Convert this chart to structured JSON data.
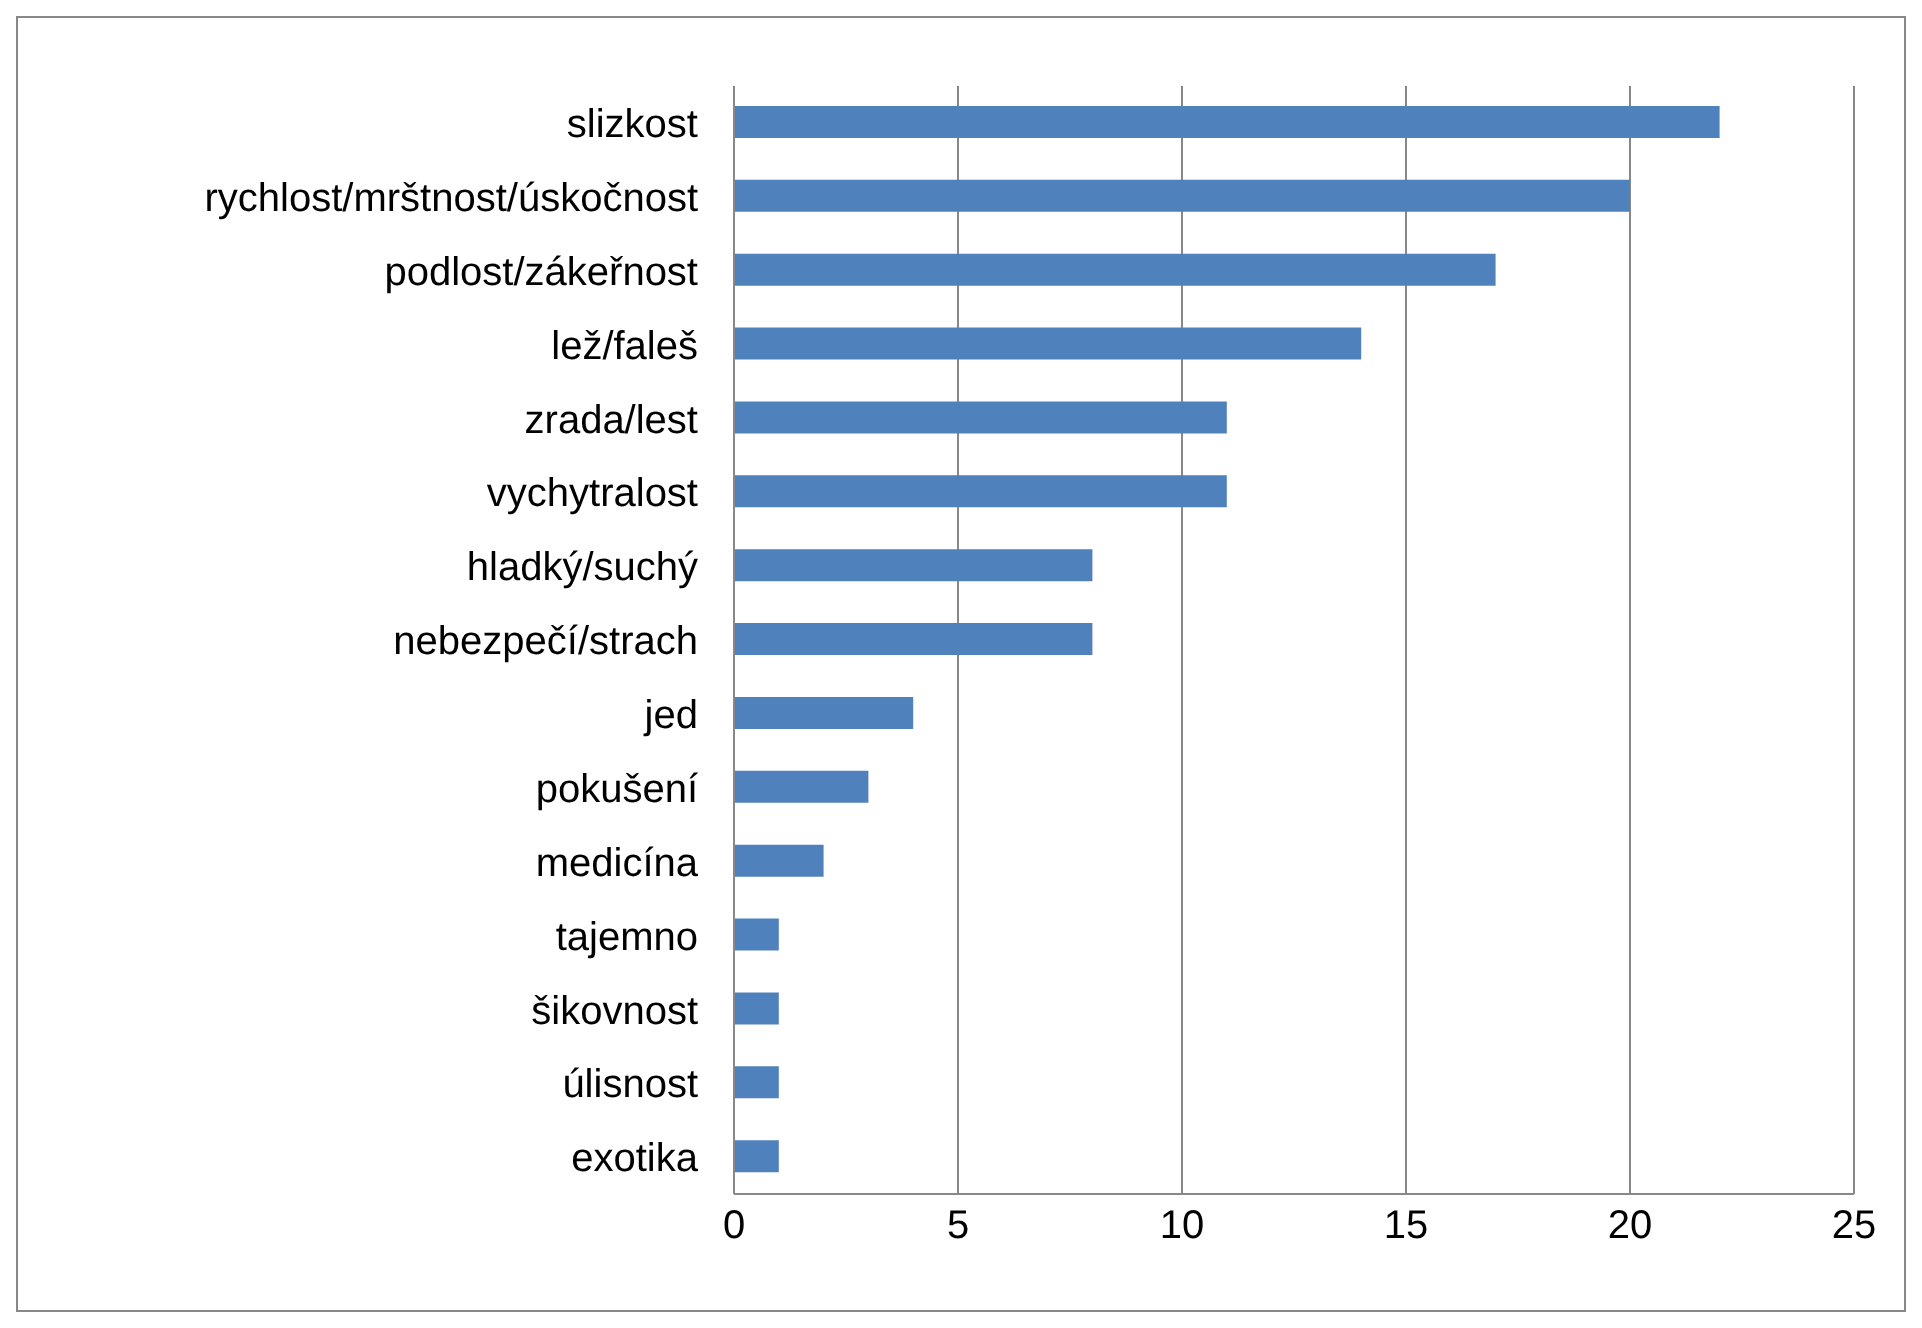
{
  "chart_data": {
    "type": "bar",
    "orientation": "horizontal",
    "categories": [
      "slizkost",
      "rychlost/mrštnost/úskočnost",
      "podlost/zákeřnost",
      "lež/faleš",
      "zrada/lest",
      "vychytralost",
      "hladký/suchý",
      "nebezpečí/strach",
      "jed",
      "pokušení",
      "medicína",
      "tajemno",
      "šikovnost",
      "úlisnost",
      "exotika"
    ],
    "values": [
      22,
      20,
      17,
      14,
      11,
      11,
      8,
      8,
      4,
      3,
      2,
      1,
      1,
      1,
      1
    ],
    "color": "#4f81bd",
    "xlim": [
      0,
      25
    ],
    "xticks": [
      0,
      5,
      10,
      15,
      20,
      25
    ],
    "grid": "x"
  }
}
